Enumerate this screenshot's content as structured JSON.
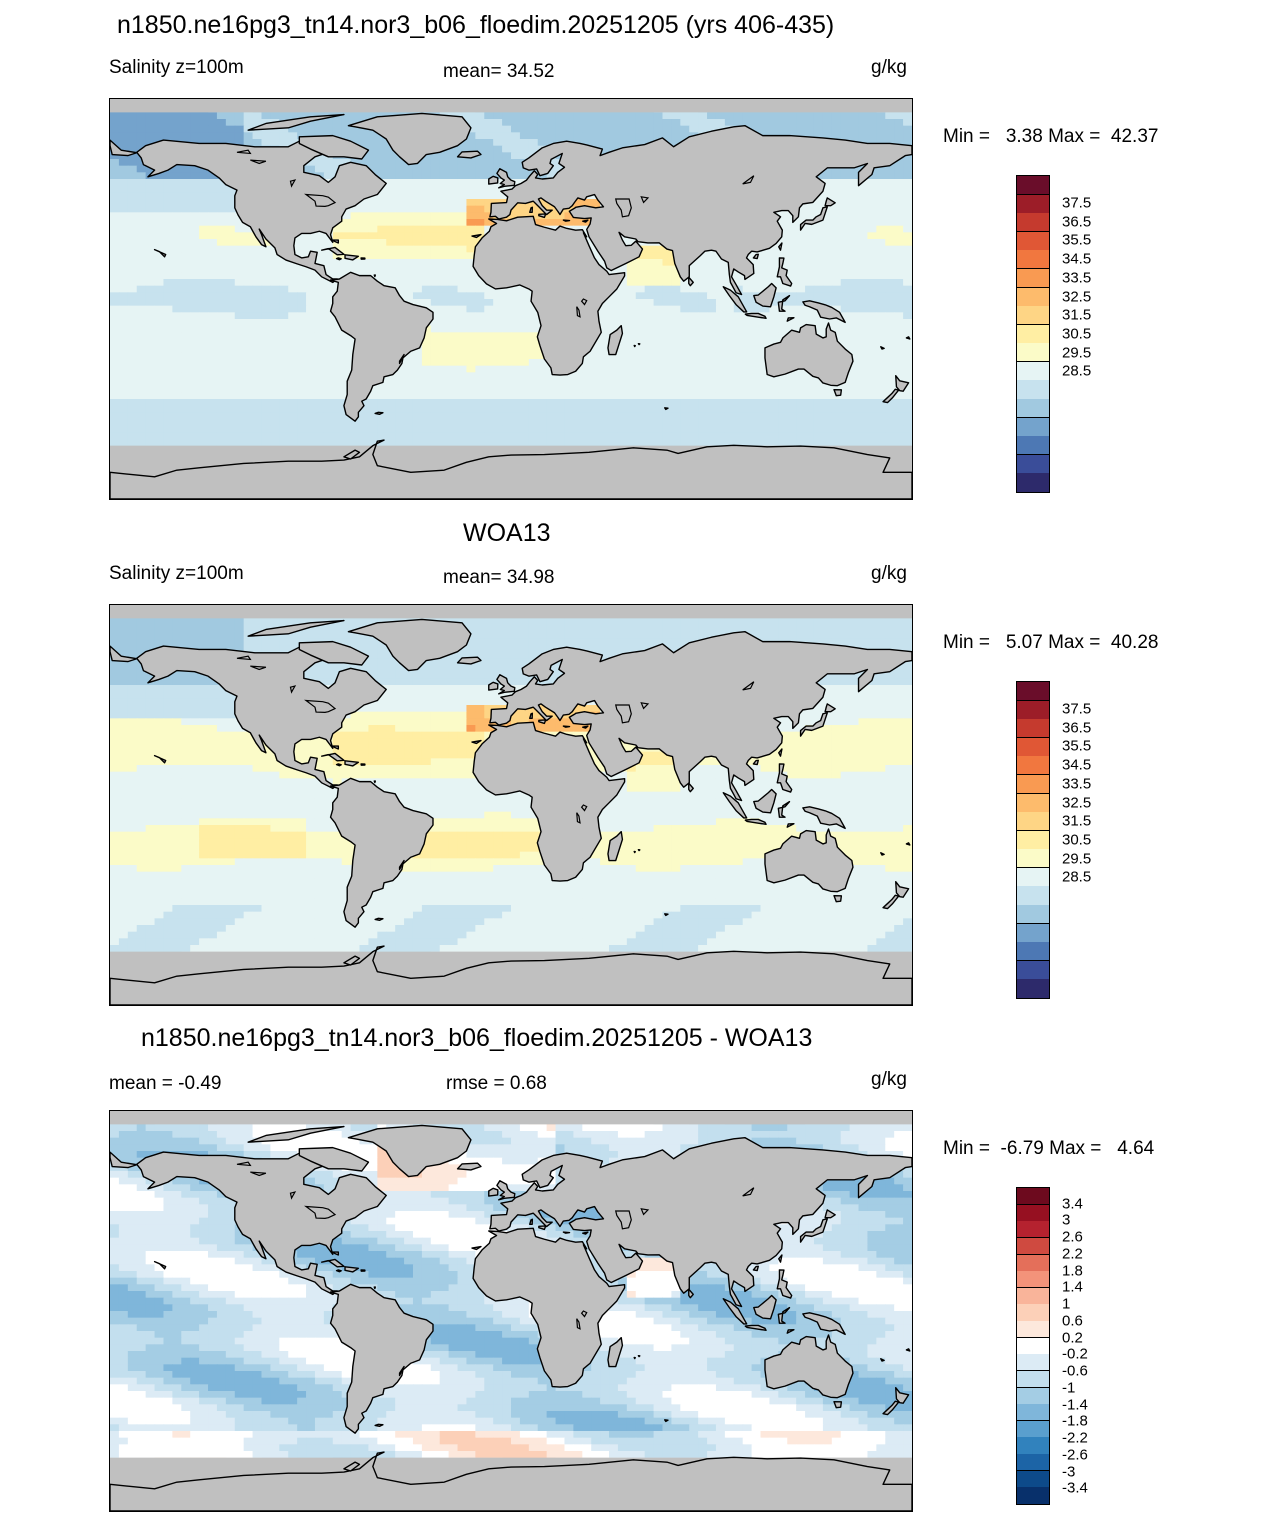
{
  "panels": [
    {
      "title": "n1850.ne16pg3_tn14.nor3_b06_floedim.20251205 (yrs 406-435)",
      "left_label": "Salinity z=100m",
      "center_label": "mean=  34.52",
      "units": "g/kg",
      "minmax": "Min =   3.38 Max =  42.37",
      "palette": "salinity",
      "field": "model",
      "colorbar": {
        "colors": [
          "#2d2a6b",
          "#3a4d99",
          "#4d78b4",
          "#74a3cc",
          "#a1c9e0",
          "#c7e2ee",
          "#e6f4f4",
          "#fbfbc8",
          "#ffeea3",
          "#fed585",
          "#fdbb6c",
          "#f99a52",
          "#f1773f",
          "#e05735",
          "#c53a2e",
          "#9c1d28",
          "#6a0d2a"
        ],
        "labels": [
          "37.5",
          "36.5",
          "35.5",
          "34.5",
          "33.5",
          "32.5",
          "31.5",
          "30.5",
          "29.5",
          "28.5"
        ]
      }
    },
    {
      "title": "WOA13",
      "left_label": "Salinity z=100m",
      "center_label": "mean=  34.98",
      "units": "g/kg",
      "minmax": "Min =   5.07 Max =  40.28",
      "palette": "salinity",
      "field": "obs",
      "colorbar": {
        "colors": [
          "#2d2a6b",
          "#3a4d99",
          "#4d78b4",
          "#74a3cc",
          "#a1c9e0",
          "#c7e2ee",
          "#e6f4f4",
          "#fbfbc8",
          "#ffeea3",
          "#fed585",
          "#fdbb6c",
          "#f99a52",
          "#f1773f",
          "#e05735",
          "#c53a2e",
          "#9c1d28",
          "#6a0d2a"
        ],
        "labels": [
          "37.5",
          "36.5",
          "35.5",
          "34.5",
          "33.5",
          "32.5",
          "31.5",
          "30.5",
          "29.5",
          "28.5"
        ]
      }
    },
    {
      "title": "n1850.ne16pg3_tn14.nor3_b06_floedim.20251205 - WOA13",
      "left_label": "mean =  -0.49",
      "center_label": "rmse =   0.68",
      "units": "g/kg",
      "minmax": "Min =  -6.79 Max =   4.64",
      "palette": "diff",
      "field": "diff",
      "colorbar": {
        "colors": [
          "#08306b",
          "#0d4a8a",
          "#1c64a6",
          "#3182bd",
          "#5a9fce",
          "#7fb6da",
          "#a4cde4",
          "#c3dfee",
          "#dcebf5",
          "#ffffff",
          "#fde8dc",
          "#fcd0b8",
          "#f9b49a",
          "#f3937a",
          "#e46f5a",
          "#cf4a40",
          "#b5222f",
          "#961021",
          "#6d0a1e"
        ],
        "labels": [
          "3.4",
          "3",
          "2.6",
          "2.2",
          "1.8",
          "1.4",
          "1",
          "0.6",
          "0.2",
          "-0.2",
          "-0.6",
          "-1",
          "-1.4",
          "-1.8",
          "-2.2",
          "-2.6",
          "-3",
          "-3.4"
        ]
      }
    }
  ],
  "colors": {
    "land": "#c0c0c0",
    "coast": "#000000"
  }
}
